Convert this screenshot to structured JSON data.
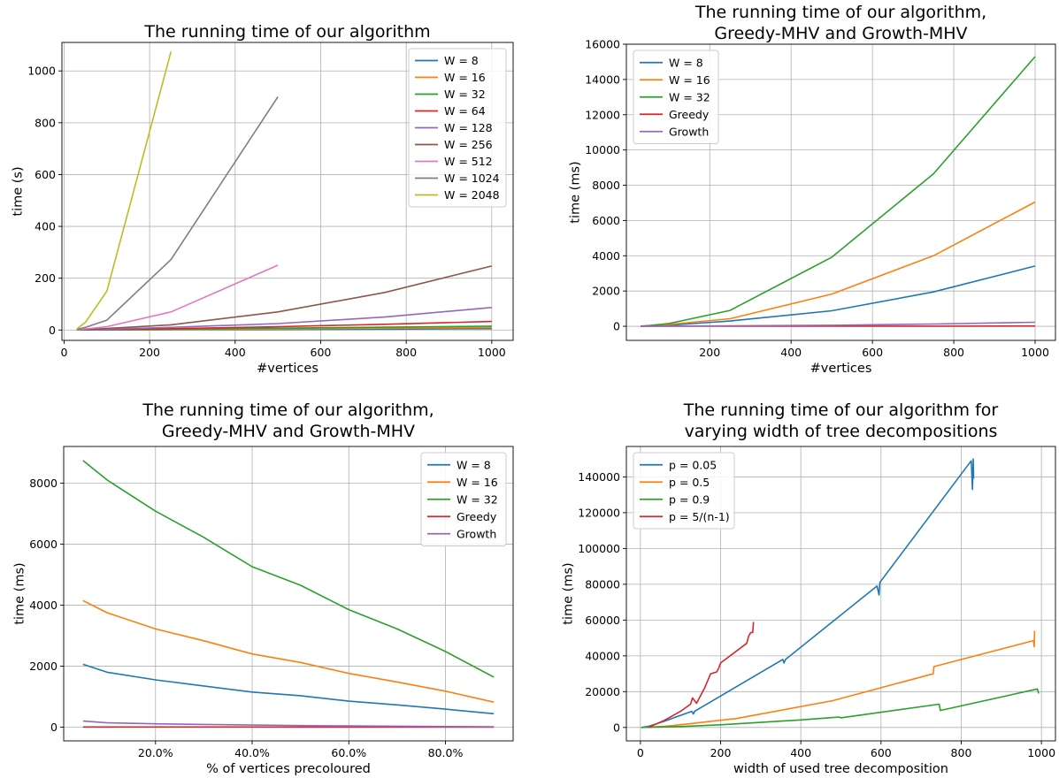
{
  "chart_data": [
    {
      "type": "line",
      "title": [
        "The running time of our algorithm"
      ],
      "xlabel": "#vertices",
      "ylabel": "time (s)",
      "xlim": [
        -5,
        1050
      ],
      "ylim": [
        -40,
        1110
      ],
      "xticks": [
        0,
        200,
        400,
        600,
        800,
        1000
      ],
      "yticks": [
        0,
        200,
        400,
        600,
        800,
        1000
      ],
      "legend_position": "top-right",
      "grid": true,
      "series": [
        {
          "name": "W = 8",
          "color": "#1f77b4",
          "x": [
            30,
            50,
            100,
            250,
            500,
            750,
            1000
          ],
          "y": [
            0.1,
            0.2,
            0.3,
            0.8,
            1.8,
            3.5,
            5
          ]
        },
        {
          "name": "W = 16",
          "color": "#ff7f0e",
          "x": [
            30,
            50,
            100,
            250,
            500,
            750,
            1000
          ],
          "y": [
            0.1,
            0.3,
            0.6,
            1.5,
            4,
            7,
            9
          ]
        },
        {
          "name": "W = 32",
          "color": "#2ca02c",
          "x": [
            30,
            50,
            100,
            250,
            500,
            750,
            1000
          ],
          "y": [
            0.1,
            0.4,
            1,
            3,
            7,
            11,
            15
          ]
        },
        {
          "name": "W = 64",
          "color": "#d62728",
          "x": [
            30,
            50,
            100,
            250,
            500,
            750,
            1000
          ],
          "y": [
            0.2,
            0.6,
            1.5,
            5,
            13,
            22,
            33
          ]
        },
        {
          "name": "W = 128",
          "color": "#9467bd",
          "x": [
            30,
            50,
            100,
            250,
            500,
            750,
            1000
          ],
          "y": [
            0.3,
            1,
            3,
            10,
            25,
            50,
            87
          ]
        },
        {
          "name": "W = 256",
          "color": "#8c564b",
          "x": [
            30,
            50,
            100,
            250,
            500,
            750,
            1000
          ],
          "y": [
            0.5,
            2,
            6,
            20,
            70,
            145,
            247
          ]
        },
        {
          "name": "W = 512",
          "color": "#e377c2",
          "x": [
            30,
            50,
            100,
            250,
            500
          ],
          "y": [
            1,
            4,
            13,
            70,
            250
          ]
        },
        {
          "name": "W = 1024",
          "color": "#7f7f7f",
          "x": [
            30,
            50,
            100,
            250,
            500
          ],
          "y": [
            2,
            10,
            38,
            272,
            900
          ]
        },
        {
          "name": "W = 2048",
          "color": "#bcbd22",
          "x": [
            30,
            50,
            100,
            250
          ],
          "y": [
            4,
            30,
            150,
            1075
          ]
        }
      ]
    },
    {
      "type": "line",
      "title": [
        "The running time of our algorithm,",
        "Greedy-MHV and Growth-MHV"
      ],
      "xlabel": "#vertices",
      "ylabel": "time (ms)",
      "xlim": [
        -5,
        1050
      ],
      "ylim": [
        -800,
        16000
      ],
      "xticks": [
        200,
        400,
        600,
        800,
        1000
      ],
      "yticks": [
        0,
        2000,
        4000,
        6000,
        8000,
        10000,
        12000,
        14000,
        16000
      ],
      "legend_position": "top-left",
      "grid": true,
      "series": [
        {
          "name": "W = 8",
          "color": "#1f77b4",
          "x": [
            30,
            50,
            100,
            250,
            500,
            750,
            1000
          ],
          "y": [
            5,
            15,
            60,
            300,
            880,
            1950,
            3420
          ]
        },
        {
          "name": "W = 16",
          "color": "#ff7f0e",
          "x": [
            30,
            50,
            100,
            250,
            500,
            750,
            1000
          ],
          "y": [
            5,
            25,
            110,
            430,
            1830,
            4000,
            7050
          ]
        },
        {
          "name": "W = 32",
          "color": "#2ca02c",
          "x": [
            30,
            50,
            100,
            250,
            500,
            750,
            1000
          ],
          "y": [
            10,
            40,
            160,
            900,
            3920,
            8650,
            15300
          ]
        },
        {
          "name": "Greedy",
          "color": "#d62728",
          "x": [
            30,
            50,
            100,
            250,
            500,
            750,
            1000
          ],
          "y": [
            0,
            0,
            1,
            2,
            5,
            8,
            12
          ]
        },
        {
          "name": "Growth",
          "color": "#9467bd",
          "x": [
            30,
            50,
            100,
            250,
            500,
            750,
            1000
          ],
          "y": [
            1,
            2,
            5,
            20,
            60,
            130,
            230
          ]
        }
      ]
    },
    {
      "type": "line",
      "title": [
        "The running time of our algorithm,",
        "Greedy-MHV and Growth-MHV"
      ],
      "xlabel": "% of vertices precoloured",
      "ylabel": "time (ms)",
      "xlim": [
        0.01,
        0.94
      ],
      "ylim": [
        -450,
        9200
      ],
      "xticks": [
        0.2,
        0.4,
        0.6,
        0.8
      ],
      "xticklabels": [
        "20.0%",
        "40.0%",
        "60.0%",
        "80.0%"
      ],
      "yticks": [
        0,
        2000,
        4000,
        6000,
        8000
      ],
      "legend_position": "top-right",
      "grid": true,
      "series": [
        {
          "name": "W = 8",
          "color": "#1f77b4",
          "x": [
            0.05,
            0.1,
            0.2,
            0.3,
            0.4,
            0.5,
            0.6,
            0.7,
            0.8,
            0.9
          ],
          "y": [
            2060,
            1800,
            1550,
            1350,
            1150,
            1030,
            850,
            730,
            590,
            440
          ]
        },
        {
          "name": "W = 16",
          "color": "#ff7f0e",
          "x": [
            0.05,
            0.1,
            0.2,
            0.3,
            0.4,
            0.5,
            0.6,
            0.7,
            0.8,
            0.9
          ],
          "y": [
            4150,
            3750,
            3220,
            2830,
            2400,
            2120,
            1760,
            1480,
            1180,
            820
          ]
        },
        {
          "name": "W = 32",
          "color": "#2ca02c",
          "x": [
            0.05,
            0.1,
            0.2,
            0.3,
            0.4,
            0.5,
            0.6,
            0.7,
            0.8,
            0.9
          ],
          "y": [
            8740,
            8100,
            7080,
            6220,
            5260,
            4650,
            3850,
            3220,
            2480,
            1640
          ]
        },
        {
          "name": "Greedy",
          "color": "#d62728",
          "x": [
            0.05,
            0.1,
            0.2,
            0.3,
            0.4,
            0.5,
            0.6,
            0.7,
            0.8,
            0.9
          ],
          "y": [
            5,
            5,
            4,
            4,
            4,
            3,
            3,
            3,
            2,
            2
          ]
        },
        {
          "name": "Growth",
          "color": "#9467bd",
          "x": [
            0.05,
            0.1,
            0.2,
            0.3,
            0.4,
            0.5,
            0.6,
            0.7,
            0.8,
            0.9
          ],
          "y": [
            200,
            140,
            110,
            90,
            70,
            50,
            40,
            30,
            20,
            10
          ]
        }
      ]
    },
    {
      "type": "line",
      "title": [
        "The running time of our algorithm for",
        "varying width of tree decompositions"
      ],
      "xlabel": "width of used tree decomposition",
      "ylabel": "time (ms)",
      "xlim": [
        -35,
        1035
      ],
      "ylim": [
        -7500,
        157000
      ],
      "xticks": [
        0,
        200,
        400,
        600,
        800,
        1000
      ],
      "yticks": [
        0,
        20000,
        40000,
        60000,
        80000,
        100000,
        120000,
        140000
      ],
      "legend_position": "top-left",
      "grid": true,
      "series": [
        {
          "name": "p = 0.05",
          "color": "#1f77b4",
          "x": [
            2,
            20,
            60,
            128,
            132,
            135,
            355,
            358,
            362,
            590,
            595,
            597,
            825,
            828,
            830,
            831
          ],
          "y": [
            0,
            600,
            3500,
            9000,
            7500,
            9000,
            38000,
            36000,
            38000,
            79000,
            74000,
            81000,
            149000,
            133000,
            150000,
            139000
          ],
          "note": ""
        },
        {
          "name": "p = 0.5",
          "color": "#ff7f0e",
          "x": [
            2,
            60,
            120,
            180,
            240,
            480,
            730,
            732,
            980,
            982,
            983
          ],
          "y": [
            0,
            600,
            2000,
            3500,
            5000,
            15000,
            30000,
            34000,
            48500,
            45000,
            54000
          ]
        },
        {
          "name": "p = 0.9",
          "color": "#2ca02c",
          "x": [
            2,
            100,
            200,
            300,
            400,
            495,
            500,
            745,
            748,
            990,
            993
          ],
          "y": [
            0,
            500,
            1500,
            2800,
            4200,
            5800,
            5400,
            13000,
            9500,
            21500,
            19000
          ]
        },
        {
          "name": "p = 5/(n-1)",
          "color": "#d62728",
          "x": [
            20,
            40,
            60,
            100,
            125,
            130,
            140,
            160,
            175,
            190,
            195,
            200,
            265,
            270,
            275,
            280,
            282
          ],
          "y": [
            0,
            2000,
            4000,
            9000,
            13000,
            16500,
            13500,
            22000,
            30000,
            31000,
            33000,
            36000,
            47000,
            51000,
            53000,
            53000,
            59000
          ]
        }
      ]
    }
  ]
}
